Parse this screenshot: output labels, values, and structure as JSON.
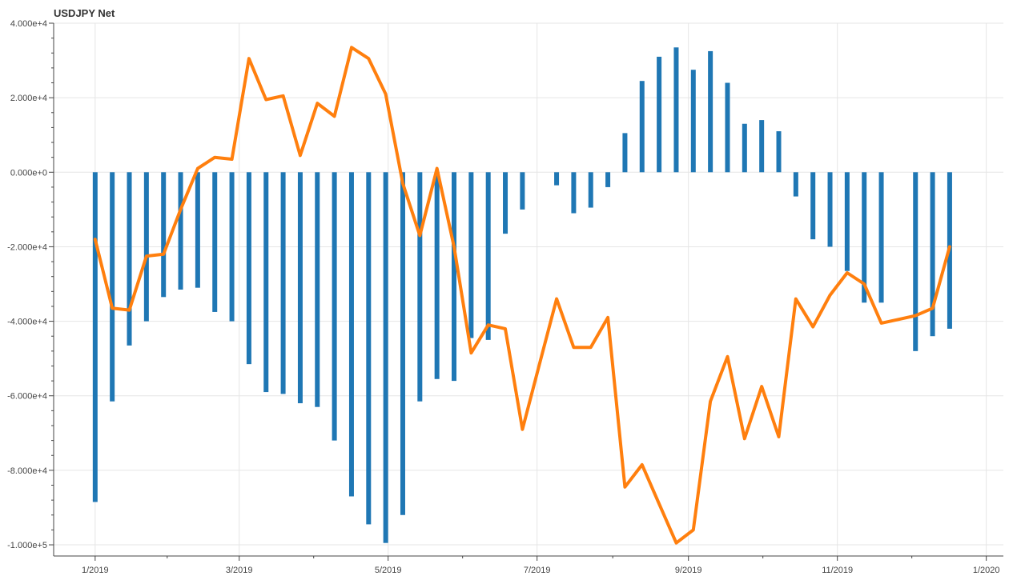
{
  "chart_data": {
    "type": "bar",
    "title": "USDJPY Net",
    "xlabel": "",
    "ylabel": "",
    "grid": true,
    "ylim": [
      -103000,
      40000
    ],
    "xlim": [
      "2018-12-15",
      "2020-01-08"
    ],
    "y_ticks": [
      40000,
      20000,
      0,
      -20000,
      -40000,
      -60000,
      -80000,
      -100000
    ],
    "y_tick_labels": [
      "4.000e+4",
      "2.000e+4",
      "0.000e+0",
      "-2.000e+4",
      "-4.000e+4",
      "-6.000e+4",
      "-8.000e+4",
      "-1.000e+5"
    ],
    "x_ticks": [
      "2019-01-01",
      "2019-03-01",
      "2019-05-01",
      "2019-07-01",
      "2019-09-01",
      "2019-11-01",
      "2020-01-01"
    ],
    "x_tick_labels": [
      "1/2019",
      "3/2019",
      "5/2019",
      "7/2019",
      "9/2019",
      "11/2019",
      "1/2020"
    ],
    "x": [
      "2019-01-01",
      "2019-01-08",
      "2019-01-15",
      "2019-01-22",
      "2019-01-29",
      "2019-02-05",
      "2019-02-12",
      "2019-02-19",
      "2019-02-26",
      "2019-03-05",
      "2019-03-12",
      "2019-03-19",
      "2019-03-26",
      "2019-04-02",
      "2019-04-09",
      "2019-04-16",
      "2019-04-23",
      "2019-04-30",
      "2019-05-07",
      "2019-05-14",
      "2019-05-21",
      "2019-05-28",
      "2019-06-04",
      "2019-06-11",
      "2019-06-18",
      "2019-06-25",
      "2019-07-02",
      "2019-07-09",
      "2019-07-16",
      "2019-07-23",
      "2019-07-30",
      "2019-08-06",
      "2019-08-13",
      "2019-08-20",
      "2019-08-27",
      "2019-09-03",
      "2019-09-10",
      "2019-09-17",
      "2019-09-24",
      "2019-10-01",
      "2019-10-08",
      "2019-10-15",
      "2019-10-22",
      "2019-10-29",
      "2019-11-05",
      "2019-11-12",
      "2019-11-19",
      "2019-11-26",
      "2019-12-03",
      "2019-12-10",
      "2019-12-17"
    ],
    "series": [
      {
        "type": "bar",
        "color": "#1f77b4",
        "values": [
          -88500,
          -61500,
          -46500,
          -40000,
          -33500,
          -31500,
          -31000,
          -37500,
          -40000,
          -51500,
          -59000,
          -59500,
          -62000,
          -63000,
          -72000,
          -87000,
          -94500,
          -99500,
          -92000,
          -61500,
          -55500,
          -56000,
          -44500,
          -45000,
          -16500,
          -10000,
          null,
          -3500,
          -11000,
          -9500,
          -4000,
          10500,
          24500,
          31000,
          33500,
          27500,
          32500,
          24000,
          13000,
          14000,
          11000,
          -6500,
          -18000,
          -20000,
          -26500,
          -35000,
          -35000,
          null,
          -48000,
          -44000,
          -42000
        ]
      },
      {
        "type": "line",
        "color": "#ff7f0e",
        "values": [
          -18000,
          -36500,
          -37000,
          -22500,
          -22000,
          -10000,
          1000,
          4000,
          3500,
          30500,
          19500,
          20500,
          4500,
          18500,
          15000,
          33500,
          30500,
          21000,
          -3000,
          -17000,
          1000,
          -20000,
          -48500,
          -41000,
          -42000,
          -69000,
          -51500,
          -34000,
          -47000,
          -47000,
          -39000,
          -84500,
          -78500,
          -89000,
          -99500,
          -96000,
          -61500,
          -49500,
          -71500,
          -57500,
          -71000,
          -34000,
          -41500,
          -33000,
          -27000,
          -30000,
          -40500,
          -39500,
          -38500,
          -36500,
          -20000
        ]
      }
    ]
  }
}
